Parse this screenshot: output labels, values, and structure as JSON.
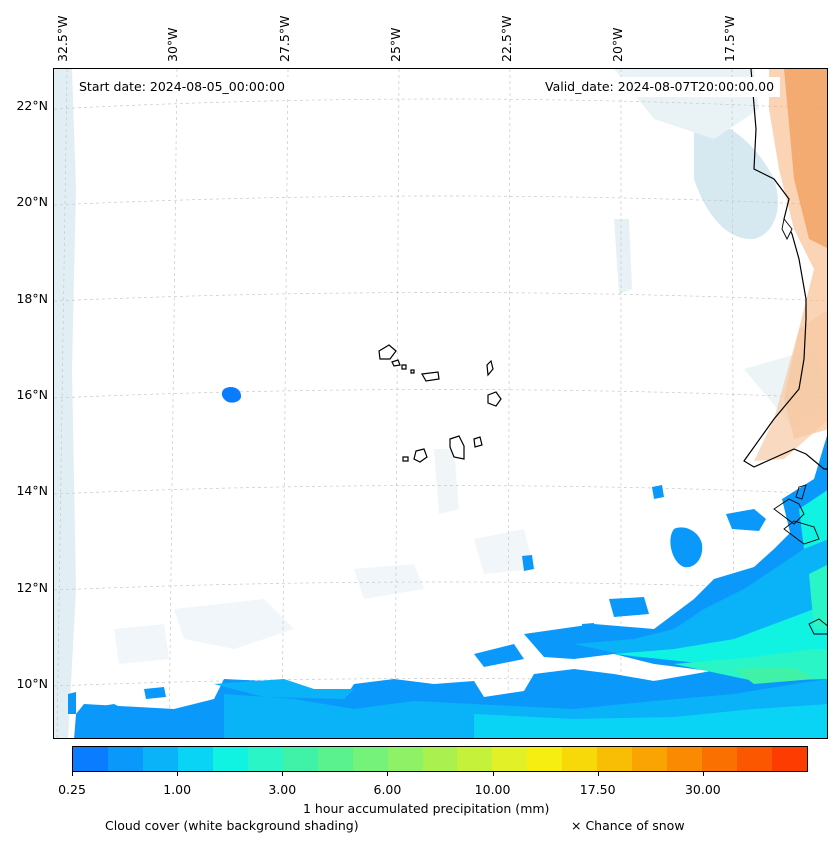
{
  "header": {
    "start_date": "Start date: 2024-08-05_00:00:00",
    "valid_date": "Valid_date: 2024-08-07T20:00:00.00"
  },
  "axes": {
    "longitude_labels": [
      "32.5°W",
      "30°W",
      "27.5°W",
      "25°W",
      "22.5°W",
      "20°W",
      "17.5°W"
    ],
    "latitude_labels": [
      "22°N",
      "20°N",
      "18°N",
      "16°N",
      "14°N",
      "12°N",
      "10°N"
    ]
  },
  "colorbar": {
    "colors": [
      "#0a7cff",
      "#0a99fb",
      "#0ab2f8",
      "#0ad4f5",
      "#10f2e2",
      "#2af5c6",
      "#3ff2a8",
      "#5af28f",
      "#75f27a",
      "#8ff266",
      "#aaf14f",
      "#c6f13a",
      "#e2f127",
      "#f5ee10",
      "#f7d808",
      "#f8be05",
      "#f9a403",
      "#f98a02",
      "#fa7001",
      "#fb5600",
      "#fc3c00"
    ],
    "tick_labels": [
      "0.25",
      "1.00",
      "3.00",
      "6.00",
      "10.00",
      "17.50",
      "30.00"
    ],
    "label": "1 hour accumulated precipitation (mm)"
  },
  "legend": {
    "cloud_cover": "Cloud cover (white background shading)",
    "snow": "× Chance of snow"
  }
}
